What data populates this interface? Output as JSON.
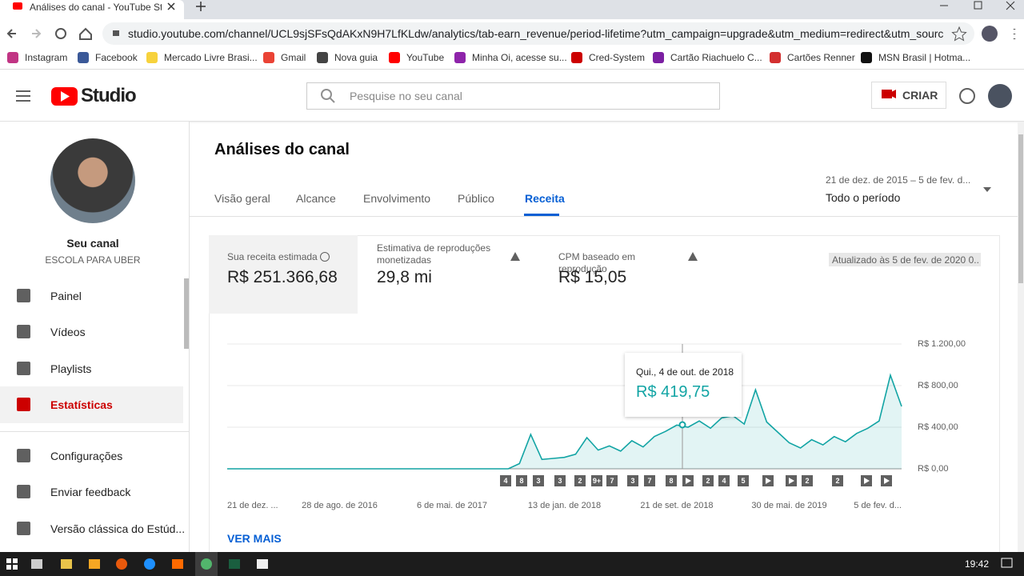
{
  "browser": {
    "tab_title": "Análises do canal - YouTube Studio",
    "url": "studio.youtube.com/channel/UCL9sjSFsQdAKxN9H7LfKLdw/analytics/tab-earn_revenue/period-lifetime?utm_campaign=upgrade&utm_medium=redirect&utm_source=%2F...",
    "bookmarks": [
      "Instagram",
      "Facebook",
      "Mercado Livre Brasi...",
      "Gmail",
      "Nova guia",
      "YouTube",
      "Minha Oi, acesse su...",
      "Cred-System",
      "Cartão Riachuelo C...",
      "Cartões Renner",
      "MSN Brasil | Hotma..."
    ]
  },
  "header": {
    "logo": "Studio",
    "search_placeholder": "Pesquise no seu canal",
    "create": "CRIAR"
  },
  "sidebar": {
    "channel_label": "Seu canal",
    "channel_name": "ESCOLA PARA UBER",
    "nav": [
      "Painel",
      "Vídeos",
      "Playlists",
      "Estatísticas",
      "Configurações",
      "Enviar feedback",
      "Versão clássica do Estúd..."
    ]
  },
  "main": {
    "title": "Análises do canal",
    "tabs": [
      "Visão geral",
      "Alcance",
      "Envolvimento",
      "Público",
      "Receita"
    ],
    "date_range": "21 de dez. de 2015 – 5 de fev. d...",
    "period": "Todo o período",
    "metrics": [
      {
        "label": "Sua receita estimada",
        "value": "R$ 251.366,68"
      },
      {
        "label": "Estimativa de reproduções monetizadas",
        "value": "29,8 mi"
      },
      {
        "label": "CPM baseado em reprodução",
        "value": "R$ 15,05"
      }
    ],
    "updated": "Atualizado às 5 de fev. de 2020 0...",
    "chart": {
      "type": "line",
      "color": "#12a4a4",
      "categories": [
        "21 de dez. ...",
        null,
        null,
        null,
        null,
        null,
        null,
        null,
        null,
        null,
        "28 de ago. de 2016",
        null,
        null,
        null,
        null,
        null,
        null,
        null,
        null,
        null,
        "6 de mai. de 2017",
        null,
        null,
        null,
        null,
        null,
        null,
        null,
        null,
        null,
        "13 de jan. de 2018",
        null,
        null,
        null,
        null,
        null,
        null,
        null,
        null,
        null,
        "21 de set. de 2018",
        null,
        null,
        null,
        null,
        null,
        null,
        null,
        null,
        null,
        "30 de mai. de 2019",
        null,
        null,
        null,
        null,
        null,
        null,
        null,
        null,
        null,
        "5 de fev. d..."
      ],
      "values": [
        0,
        0,
        0,
        0,
        0,
        0,
        0,
        0,
        0,
        0,
        0,
        0,
        0,
        0,
        0,
        0,
        0,
        0,
        0,
        0,
        0,
        0,
        0,
        0,
        0,
        0,
        50,
        330,
        90,
        100,
        110,
        140,
        300,
        180,
        220,
        170,
        270,
        210,
        310,
        360,
        420,
        400,
        460,
        390,
        490,
        510,
        430,
        760,
        450,
        350,
        250,
        200,
        280,
        230,
        310,
        260,
        340,
        390,
        460,
        900,
        600
      ],
      "ylim": [
        0,
        1200
      ],
      "yticks": [
        {
          "value": 0,
          "label": "R$ 0,00"
        },
        {
          "value": 400,
          "label": "R$ 400,00"
        },
        {
          "value": 800,
          "label": "R$ 800,00"
        },
        {
          "value": 1200,
          "label": "R$ 1.200,00"
        }
      ],
      "grid": true,
      "markers": [
        "4",
        "8",
        "3",
        "3",
        "2",
        "9+",
        "7",
        "3",
        "7",
        "8",
        "2",
        "4",
        "5",
        "2",
        "2"
      ]
    },
    "tooltip": {
      "date": "Qui., 4 de out. de 2018",
      "value": "R$ 419,75"
    },
    "see_more": "VER MAIS"
  },
  "taskbar": {
    "time": "19:42"
  }
}
